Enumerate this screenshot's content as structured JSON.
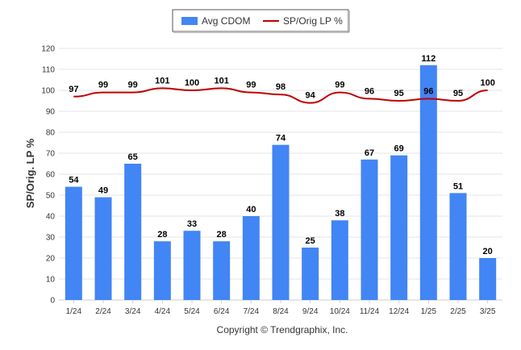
{
  "chart_data": {
    "type": "bar",
    "categories": [
      "1/24",
      "2/24",
      "3/24",
      "4/24",
      "5/24",
      "6/24",
      "7/24",
      "8/24",
      "9/24",
      "10/24",
      "11/24",
      "12/24",
      "1/25",
      "2/25",
      "3/25"
    ],
    "series": [
      {
        "name": "Avg CDOM",
        "type": "bar",
        "color": "#4285f4",
        "values": [
          54,
          49,
          65,
          28,
          33,
          28,
          40,
          74,
          25,
          38,
          67,
          69,
          112,
          51,
          20
        ]
      },
      {
        "name": "SP/Orig LP %",
        "type": "line",
        "color": "#c00000",
        "values": [
          97,
          99,
          99,
          101,
          100,
          101,
          99,
          98,
          94,
          99,
          96,
          95,
          96,
          95,
          100
        ]
      }
    ],
    "ylabel": "SP/Orig. LP %",
    "xlabel": "",
    "ylim": [
      0,
      120
    ],
    "yticks": [
      0,
      10,
      20,
      30,
      40,
      50,
      60,
      70,
      80,
      90,
      100,
      110,
      120
    ],
    "grid": true,
    "legend_position": "top-center"
  },
  "credit": "Copyright © Trendgraphix, Inc."
}
